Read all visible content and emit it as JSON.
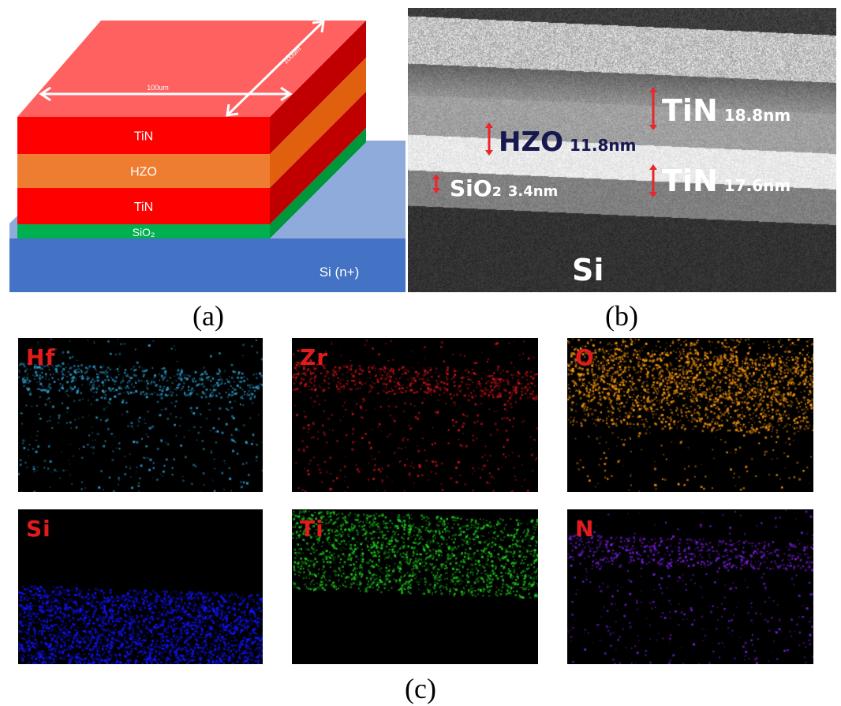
{
  "panels": {
    "a": {
      "label": "(a)",
      "layers": [
        {
          "name": "TiN",
          "color": "#fe0000"
        },
        {
          "name": "HZO",
          "color": "#ee7d31"
        },
        {
          "name": "TiN",
          "color": "#fe0000"
        },
        {
          "name": "SiO₂",
          "color": "#00b050"
        }
      ],
      "substrate": {
        "label": "Si (n+)",
        "color": "#4472c4",
        "top_color": "#8fabdc"
      },
      "dimension_width": "100um",
      "dimension_depth": "100um",
      "top_color": "#ff6060",
      "side_color": "#c00000"
    },
    "b": {
      "label": "(b)",
      "annotations": [
        {
          "material": "TiN",
          "thickness": "18.8nm",
          "style": "light"
        },
        {
          "material": "HZO",
          "thickness": "11.8nm",
          "style": "dark"
        },
        {
          "material": "TiN",
          "thickness": "17.6nm",
          "style": "light"
        },
        {
          "material": "SiO₂",
          "thickness": "3.4nm",
          "style": "light"
        }
      ],
      "substrate": "Si",
      "arrow_color": "#e8262c"
    },
    "c": {
      "label": "(c)",
      "maps": [
        {
          "element": "Hf",
          "color": "#2fa3d6",
          "band": "upper"
        },
        {
          "element": "Zr",
          "color": "#d0141c",
          "band": "upper"
        },
        {
          "element": "O",
          "color": "#ff9a10",
          "band": "upper_dense"
        },
        {
          "element": "Si",
          "color": "#1414ff",
          "band": "bottom"
        },
        {
          "element": "Ti",
          "color": "#20d020",
          "band": "ti"
        },
        {
          "element": "N",
          "color": "#7a1fe0",
          "band": "upper"
        }
      ]
    }
  }
}
